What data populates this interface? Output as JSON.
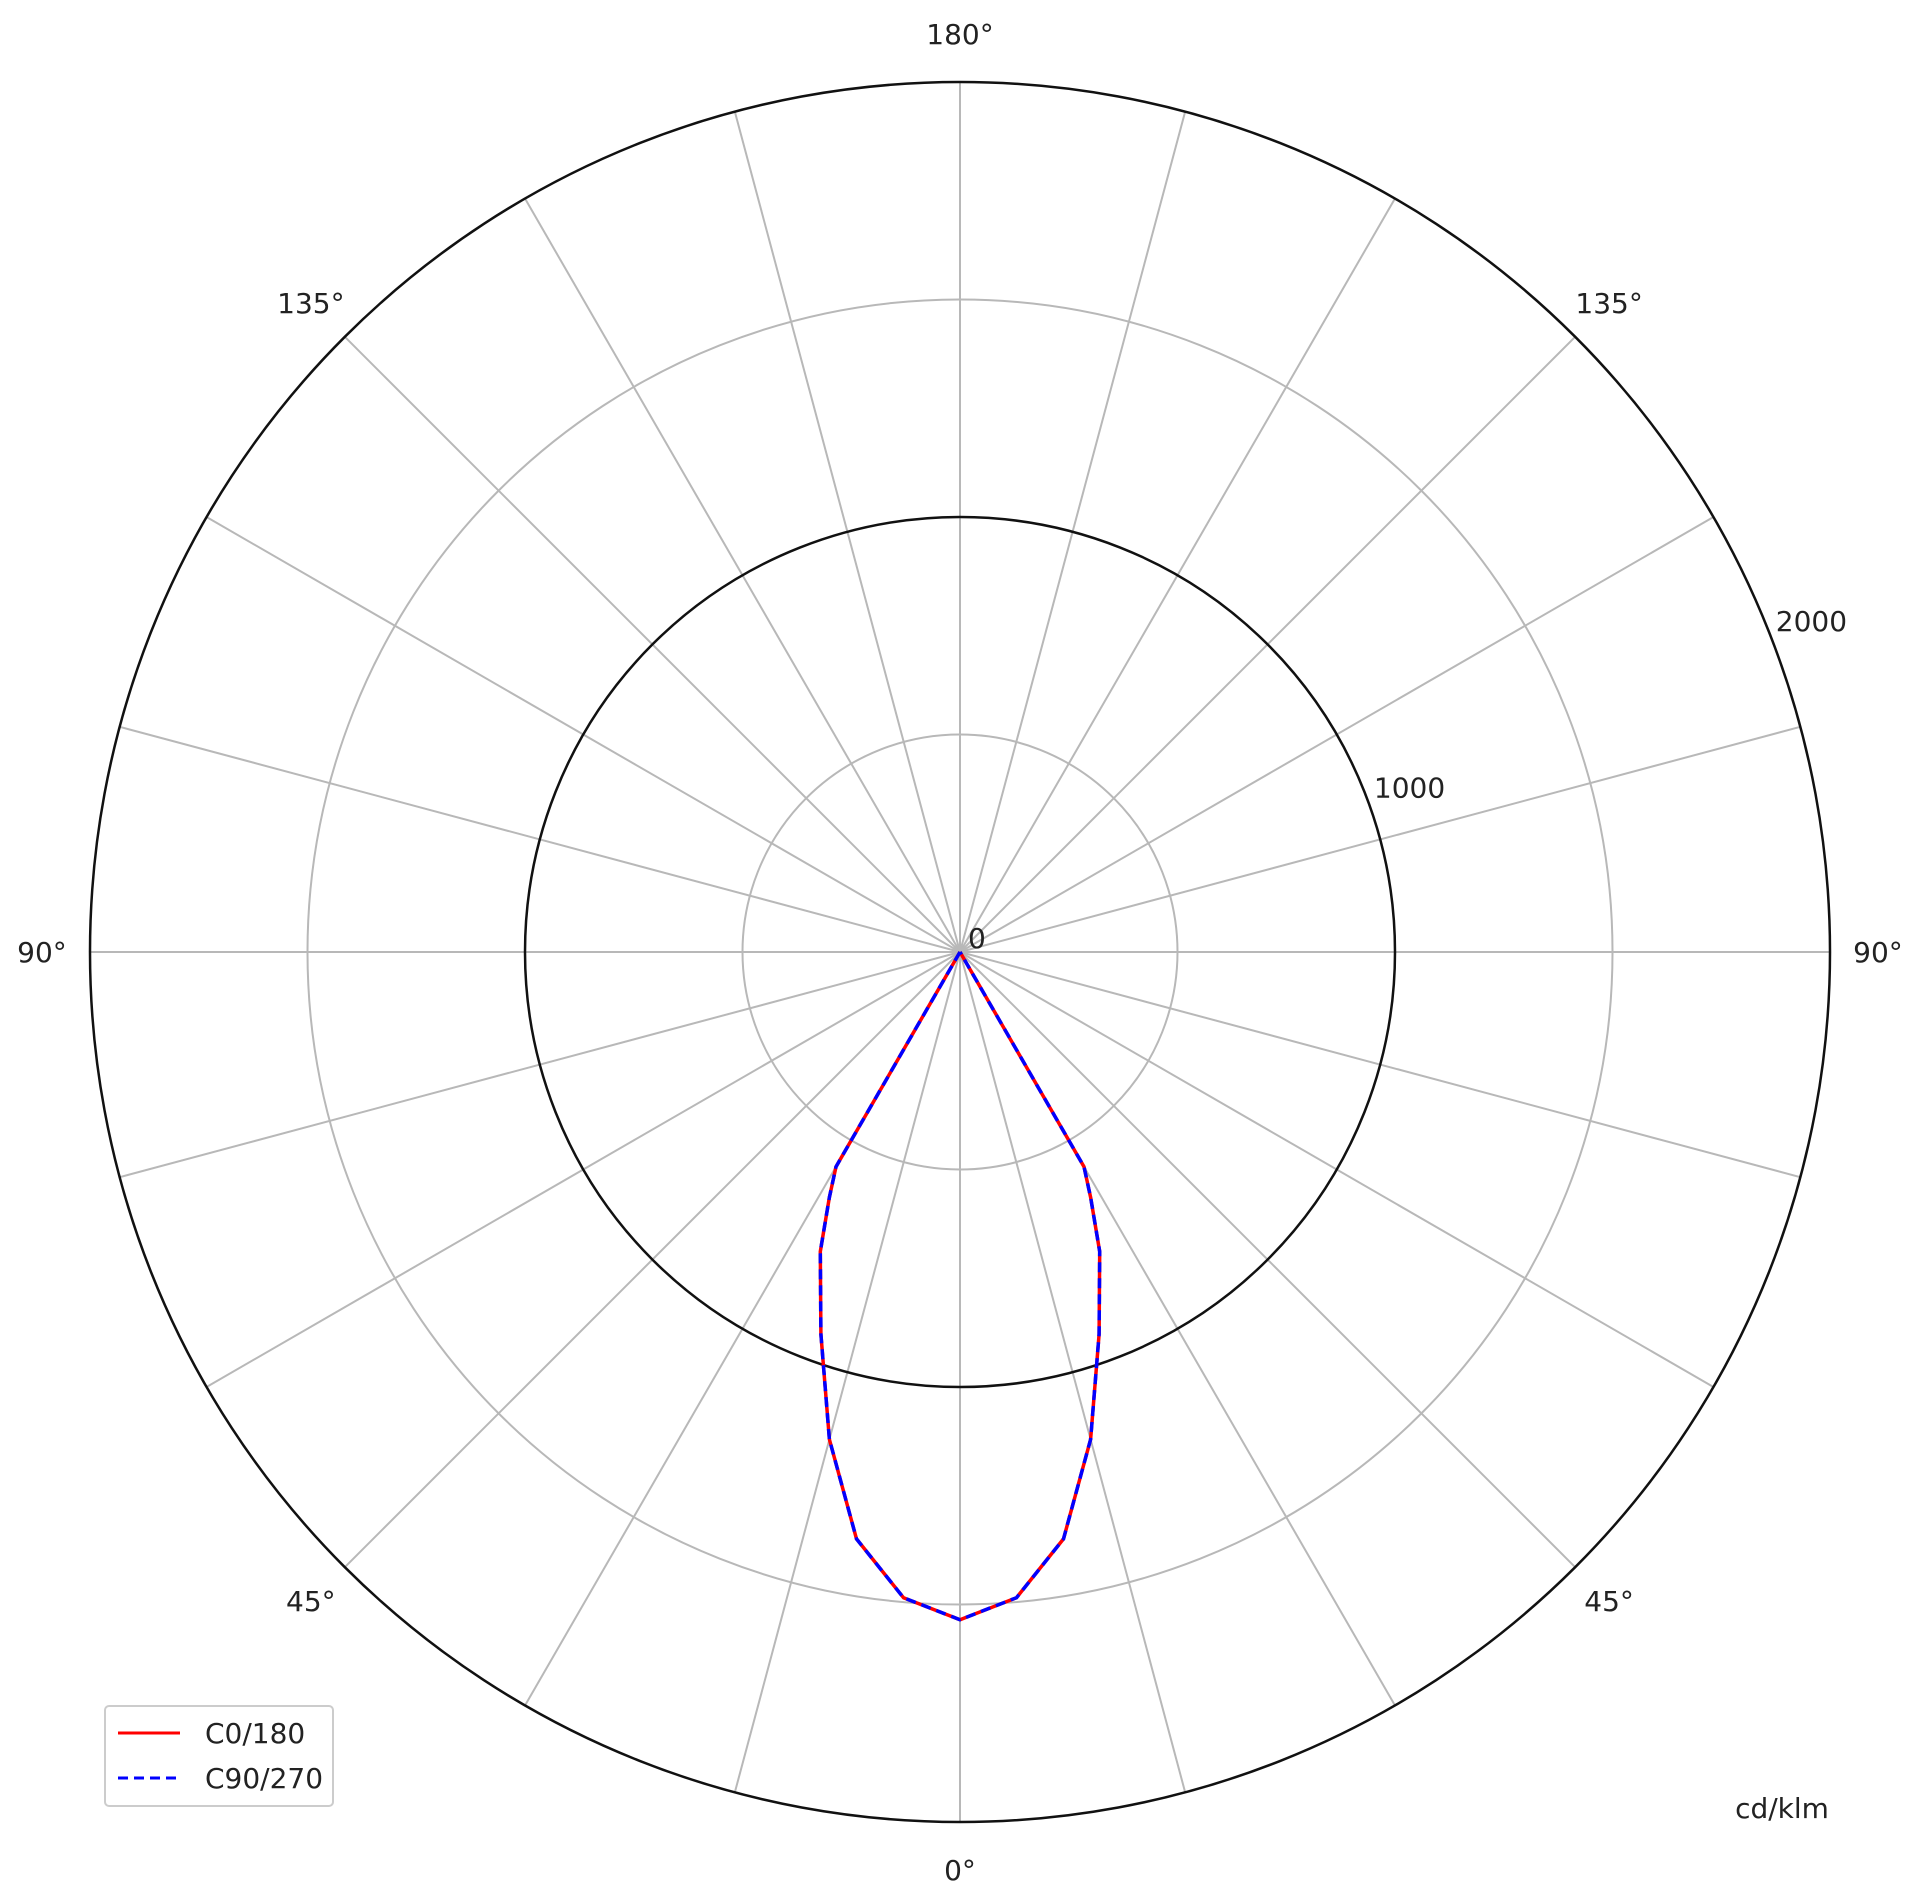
{
  "chart_data": {
    "type": "polar",
    "unit_label": "cd/klm",
    "radial_ticks": [
      0,
      1000,
      2000
    ],
    "radial_tick_labels": [
      "0",
      "1000",
      "2000"
    ],
    "radial_gridlines": [
      500,
      1000,
      1500,
      2000
    ],
    "radial_range": [
      0,
      2000
    ],
    "angle_step_deg": 15,
    "angle_labels": [
      {
        "label": "180°",
        "angle": 180,
        "side": "center"
      },
      {
        "label": "135°",
        "angle": 135,
        "side": "left"
      },
      {
        "label": "135°",
        "angle": 135,
        "side": "right"
      },
      {
        "label": "90°",
        "angle": 90,
        "side": "left"
      },
      {
        "label": "90°",
        "angle": 90,
        "side": "right"
      },
      {
        "label": "45°",
        "angle": 45,
        "side": "left"
      },
      {
        "label": "45°",
        "angle": 45,
        "side": "right"
      },
      {
        "label": "0°",
        "angle": 0,
        "side": "center"
      }
    ],
    "grid": true,
    "legend_position": "bottom-left",
    "series": [
      {
        "name": "C0/180",
        "color": "#ff0000",
        "style": "solid",
        "angles": [
          0,
          5,
          10,
          15,
          20,
          25,
          28,
          30,
          30.5,
          180
        ],
        "values": [
          1535,
          1490,
          1370,
          1160,
          935,
          760,
          640,
          570,
          0,
          0
        ]
      },
      {
        "name": "C90/270",
        "color": "#0000ff",
        "style": "dashed",
        "angles": [
          0,
          5,
          10,
          15,
          20,
          25,
          28,
          30,
          30.5,
          180
        ],
        "values": [
          1535,
          1490,
          1370,
          1160,
          935,
          760,
          640,
          570,
          0,
          0
        ]
      }
    ]
  }
}
